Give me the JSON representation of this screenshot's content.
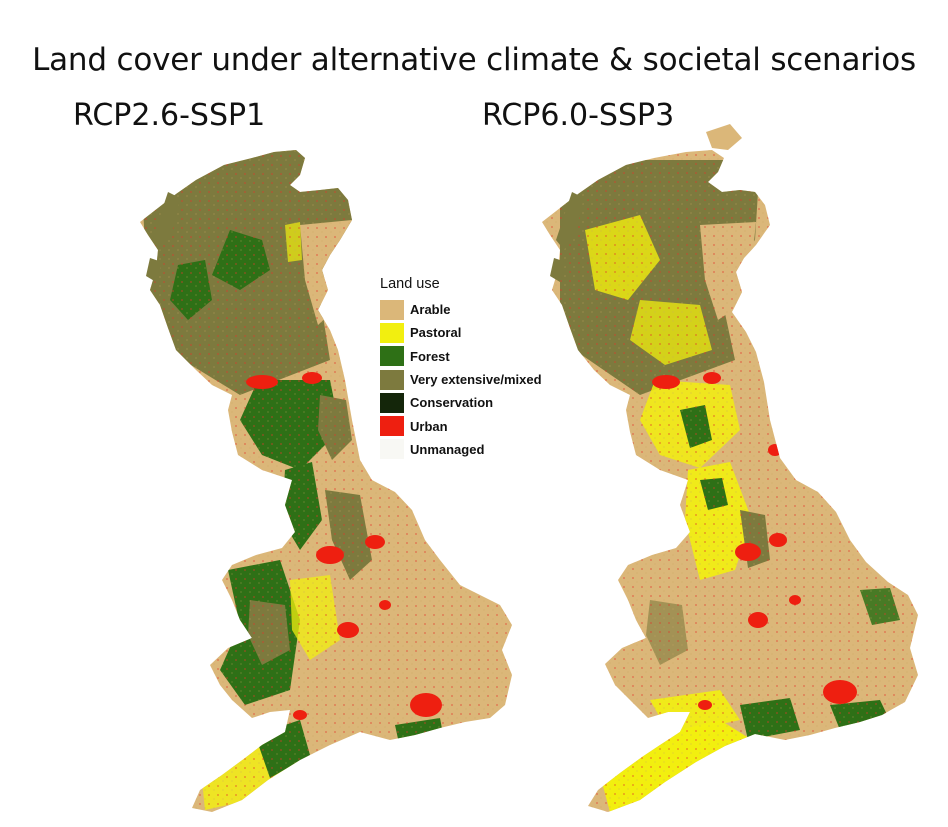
{
  "title": "Land cover under alternative climate & societal scenarios",
  "maps": [
    {
      "label": "RCP2.6-SSP1"
    },
    {
      "label": "RCP6.0-SSP3"
    }
  ],
  "legend": {
    "title": "Land use",
    "items": [
      {
        "label": "Arable",
        "color": "#dbb779"
      },
      {
        "label": "Pastoral",
        "color": "#f2ef0f"
      },
      {
        "label": "Forest",
        "color": "#2e7016"
      },
      {
        "label": "Very extensive/mixed",
        "color": "#7d7a3e"
      },
      {
        "label": "Conservation",
        "color": "#14260a"
      },
      {
        "label": "Urban",
        "color": "#ee1f10"
      },
      {
        "label": "Unmanaged",
        "color": "#f8f8f4"
      }
    ]
  }
}
